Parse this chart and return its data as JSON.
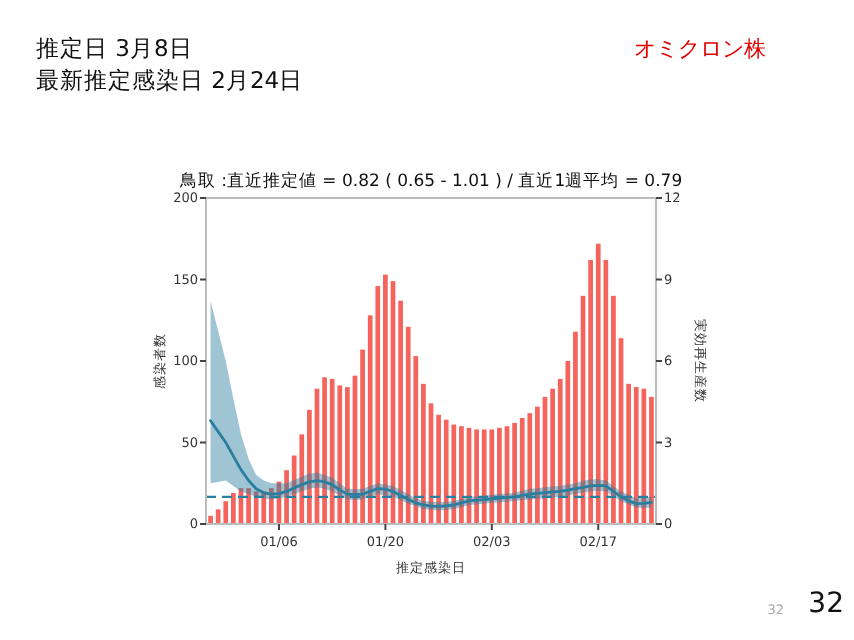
{
  "chart_data": {
    "type": "bar",
    "title": "鳥取 :直近推定値 = 0.82 ( 0.65 - 1.01 ) / 直近1週平均 = 0.79",
    "xlabel": "推定感染日",
    "ylabel": "感染者数",
    "y2label": "実効再生産数",
    "annotations": [
      "推定日  3月8日",
      "最新推定感染日  2月24日",
      "オミクロン株",
      "32",
      "32"
    ],
    "categories": [
      null,
      null,
      null,
      null,
      null,
      null,
      null,
      null,
      null,
      "01/06",
      null,
      null,
      null,
      null,
      null,
      null,
      null,
      null,
      null,
      null,
      null,
      null,
      null,
      "01/20",
      null,
      null,
      null,
      null,
      null,
      null,
      null,
      null,
      null,
      null,
      null,
      null,
      null,
      "02/03",
      null,
      null,
      null,
      null,
      null,
      null,
      null,
      null,
      null,
      null,
      null,
      null,
      null,
      "02/17",
      null,
      null,
      null,
      null,
      null,
      null,
      null
    ],
    "series": [
      {
        "color": "#f4645c",
        "values": [
          5,
          9,
          14,
          19,
          22,
          22,
          20,
          20,
          22,
          26,
          33,
          42,
          55,
          70,
          83,
          90,
          89,
          85,
          84,
          91,
          107,
          128,
          146,
          153,
          149,
          137,
          121,
          103,
          86,
          74,
          67,
          64,
          61,
          60,
          59,
          58,
          58,
          58,
          59,
          60,
          62,
          65,
          68,
          72,
          78,
          83,
          89,
          100,
          118,
          140,
          162,
          172,
          162,
          140,
          114,
          86,
          84,
          83,
          78
        ]
      },
      {
        "type": "line",
        "axis": "y2",
        "color": "#2a7fa0",
        "values": [
          3.8,
          3.4,
          3.0,
          2.5,
          2.0,
          1.6,
          1.3,
          1.15,
          1.1,
          1.12,
          1.2,
          1.33,
          1.45,
          1.55,
          1.6,
          1.55,
          1.45,
          1.25,
          1.1,
          1.08,
          1.1,
          1.2,
          1.3,
          1.28,
          1.2,
          1.05,
          0.9,
          0.78,
          0.7,
          0.66,
          0.65,
          0.67,
          0.7,
          0.78,
          0.85,
          0.88,
          0.9,
          0.93,
          0.95,
          0.98,
          1.0,
          1.05,
          1.1,
          1.13,
          1.15,
          1.18,
          1.2,
          1.25,
          1.3,
          1.35,
          1.4,
          1.42,
          1.4,
          1.2,
          1.0,
          0.85,
          0.75,
          0.76,
          0.8
        ],
        "lower": [
          1.5,
          1.55,
          1.6,
          1.4,
          1.2,
          1.1,
          1.0,
          0.95,
          0.9,
          0.95,
          1.0,
          1.1,
          1.2,
          1.3,
          1.35,
          1.3,
          1.2,
          1.05,
          0.9,
          0.88,
          0.9,
          1.0,
          1.1,
          1.05,
          1.0,
          0.88,
          0.75,
          0.65,
          0.55,
          0.52,
          0.5,
          0.52,
          0.55,
          0.62,
          0.7,
          0.72,
          0.75,
          0.78,
          0.8,
          0.82,
          0.85,
          0.88,
          0.9,
          0.93,
          0.95,
          0.98,
          1.0,
          1.05,
          1.1,
          1.15,
          1.2,
          1.22,
          1.2,
          1.0,
          0.85,
          0.72,
          0.6,
          0.6,
          0.6
        ],
        "upper": [
          8.2,
          7.1,
          6.0,
          4.6,
          3.3,
          2.4,
          1.8,
          1.6,
          1.5,
          1.5,
          1.5,
          1.62,
          1.75,
          1.85,
          1.9,
          1.8,
          1.7,
          1.5,
          1.3,
          1.28,
          1.3,
          1.4,
          1.5,
          1.45,
          1.4,
          1.25,
          1.1,
          0.95,
          0.85,
          0.82,
          0.8,
          0.82,
          0.85,
          0.92,
          1.0,
          1.02,
          1.05,
          1.08,
          1.1,
          1.12,
          1.15,
          1.22,
          1.3,
          1.32,
          1.35,
          1.38,
          1.4,
          1.45,
          1.5,
          1.58,
          1.65,
          1.65,
          1.6,
          1.4,
          1.2,
          1.08,
          0.95,
          0.97,
          1.0
        ]
      }
    ],
    "ylim": [
      0,
      200
    ],
    "yticks": [
      0,
      50,
      100,
      150,
      200
    ],
    "y2lim": [
      0,
      12
    ],
    "y2ticks": [
      0,
      3,
      6,
      9,
      12
    ],
    "ref_lines": [
      {
        "axis": "y2",
        "value": 1,
        "color": "#2a7fa0",
        "line_style": "dashed"
      }
    ]
  }
}
